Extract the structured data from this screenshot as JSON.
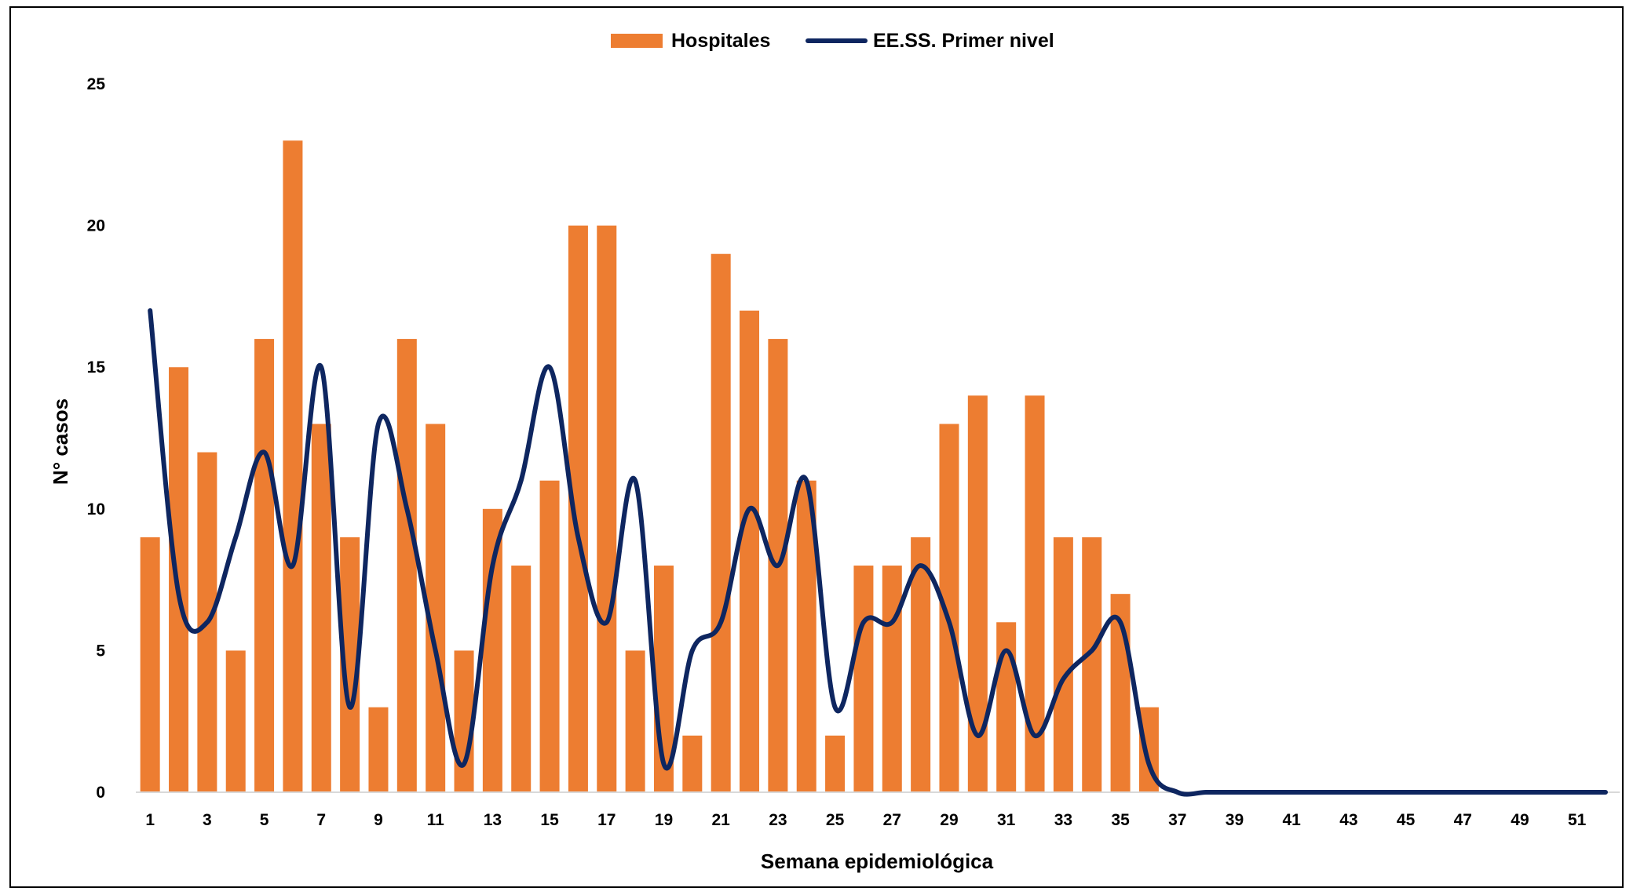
{
  "legend": {
    "bars_label": "Hospitales",
    "line_label": "EE.SS. Primer nivel"
  },
  "colors": {
    "bars": "#ED7D31",
    "line": "#0E2660",
    "axis": "#D9D9D9"
  },
  "chart_data": {
    "type": "bar",
    "xlabel": "Semana epidemiológica",
    "ylabel": "N° casos",
    "ylim": [
      0,
      25
    ],
    "yticks": [
      0,
      5,
      10,
      15,
      20,
      25
    ],
    "grid": false,
    "legend_position": "top-center",
    "x": [
      1,
      2,
      3,
      4,
      5,
      6,
      7,
      8,
      9,
      10,
      11,
      12,
      13,
      14,
      15,
      16,
      17,
      18,
      19,
      20,
      21,
      22,
      23,
      24,
      25,
      26,
      27,
      28,
      29,
      30,
      31,
      32,
      33,
      34,
      35,
      36,
      37,
      38,
      39,
      40,
      41,
      42,
      43,
      44,
      45,
      46,
      47,
      48,
      49,
      50,
      51,
      52
    ],
    "xtick_labels": [
      "1",
      "3",
      "5",
      "7",
      "9",
      "11",
      "13",
      "15",
      "17",
      "19",
      "21",
      "23",
      "25",
      "27",
      "29",
      "31",
      "33",
      "35",
      "37",
      "39",
      "41",
      "43",
      "45",
      "47",
      "49",
      "51"
    ],
    "series": [
      {
        "name": "Hospitales",
        "type": "bar",
        "values": [
          9,
          15,
          12,
          5,
          16,
          23,
          13,
          9,
          3,
          16,
          13,
          5,
          10,
          8,
          11,
          20,
          20,
          5,
          8,
          2,
          19,
          17,
          16,
          11,
          2,
          8,
          8,
          9,
          13,
          14,
          6,
          14,
          9,
          9,
          7,
          3,
          0,
          0,
          0,
          0,
          0,
          0,
          0,
          0,
          0,
          0,
          0,
          0,
          0,
          0,
          0,
          0
        ]
      },
      {
        "name": "EE.SS. Primer nivel",
        "type": "line",
        "smooth": true,
        "values": [
          17,
          7,
          6,
          9,
          12,
          8,
          15,
          3,
          13,
          10,
          5,
          1,
          8,
          11,
          15,
          9,
          6,
          11,
          1,
          5,
          6,
          10,
          8,
          11,
          3,
          6,
          6,
          8,
          6,
          2,
          5,
          2,
          4,
          5,
          6,
          1,
          0,
          0,
          0,
          0,
          0,
          0,
          0,
          0,
          0,
          0,
          0,
          0,
          0,
          0,
          0,
          0
        ]
      }
    ]
  }
}
